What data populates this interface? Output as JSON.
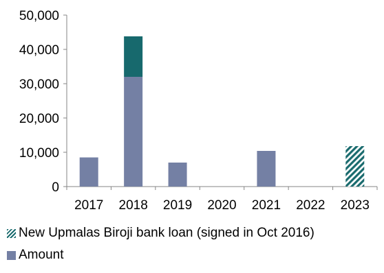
{
  "chart_data": {
    "type": "bar",
    "categories": [
      "2017",
      "2018",
      "2019",
      "2020",
      "2021",
      "2022",
      "2023"
    ],
    "series": [
      {
        "name": "Amount",
        "color": "#7480a4",
        "values": [
          8500,
          32000,
          7000,
          0,
          10400,
          0,
          0
        ]
      },
      {
        "name": "",
        "color": "#17696d",
        "values": [
          0,
          11800,
          0,
          0,
          0,
          0,
          0
        ]
      },
      {
        "name": "New Upmalas Biroji bank loan (signed in Oct 2016)",
        "color": "#1a6b6e",
        "pattern": "hatch",
        "values": [
          0,
          0,
          0,
          0,
          0,
          0,
          11800
        ]
      }
    ],
    "stacked": true,
    "ylim": [
      0,
      50000
    ],
    "yticks": [
      "0",
      "10,000",
      "20,000",
      "30,000",
      "40,000",
      "50,000"
    ],
    "ytick_values": [
      0,
      10000,
      20000,
      30000,
      40000,
      50000
    ],
    "title": "",
    "xlabel": "",
    "ylabel": "",
    "grid": false,
    "legend_position": "bottom-left"
  },
  "legend": [
    {
      "label": "New Upmalas Biroji bank loan (signed in Oct 2016)",
      "swatch": "hatch"
    },
    {
      "label": "Amount",
      "swatch": "solid"
    }
  ]
}
